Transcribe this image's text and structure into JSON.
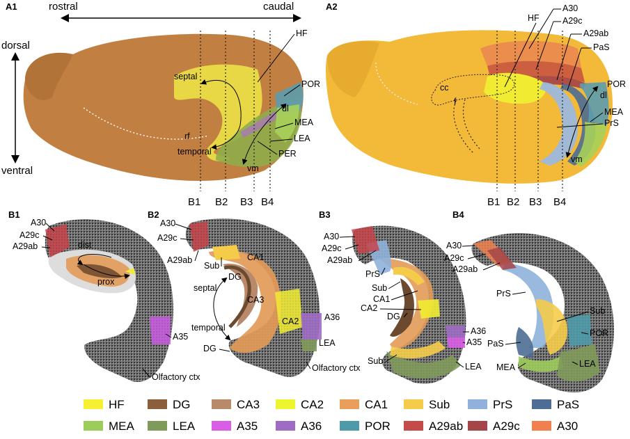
{
  "panels": {
    "a1": "A1",
    "a2": "A2",
    "b1": "B1",
    "b2": "B2",
    "b3": "B3",
    "b4": "B4"
  },
  "axes": {
    "rostral": "rostral",
    "caudal": "caudal",
    "dorsal": "dorsal",
    "ventral": "ventral"
  },
  "a1": {
    "hf": "HF",
    "septal": "septal",
    "por": "POR",
    "dl": "dl",
    "mea": "MEA",
    "rf": "rf",
    "temporal": "temporal",
    "lea": "LEA",
    "per": "PER",
    "vm": "vm",
    "cuts": [
      "B1",
      "B2",
      "B3",
      "B4"
    ]
  },
  "a2": {
    "hf": "HF",
    "a30": "A30",
    "a29c": "A29c",
    "a29ab": "A29ab",
    "pas": "PaS",
    "por": "POR",
    "dl": "dl",
    "cc": "cc",
    "f": "f",
    "mea": "MEA",
    "prs": "PrS",
    "vm": "vm",
    "cuts": [
      "B1",
      "B2",
      "B3",
      "B4"
    ]
  },
  "b1": {
    "a30": "A30",
    "a29c": "A29c",
    "a29ab": "A29ab",
    "dist": "dist",
    "prox": "prox",
    "a35": "A35",
    "olf": "Olfactory ctx"
  },
  "b2": {
    "a30": "A30",
    "a29c": "A29c",
    "a29ab": "A29ab",
    "sub": "Sub",
    "ca1": "CA1",
    "dg1": "DG",
    "septal": "septal",
    "ca3": "CA3",
    "ca2": "CA2",
    "temporal": "temporal",
    "a36": "A36",
    "lea": "LEA",
    "dg2": "DG",
    "olf": "Olfactory ctx"
  },
  "b3": {
    "a30": "A30",
    "a29c": "A29c",
    "a29ab": "A29ab",
    "prs": "PrS",
    "sub1": "Sub",
    "ca1": "CA1",
    "ca2": "CA2",
    "dg": "DG",
    "a36": "A36",
    "a35": "A35",
    "sub2": "Sub",
    "lea": "LEA"
  },
  "b4": {
    "a30": "A30",
    "a29c": "A29c",
    "a29ab": "A29ab",
    "prs": "PrS",
    "sub": "Sub",
    "por": "POR",
    "pas": "PaS",
    "mea": "MEA",
    "lea": "LEA"
  },
  "legend": [
    {
      "label": "HF",
      "color": "#f7f032"
    },
    {
      "label": "DG",
      "color": "#8b5e3c"
    },
    {
      "label": "CA3",
      "color": "#b8896a"
    },
    {
      "label": "CA2",
      "color": "#ecf52e"
    },
    {
      "label": "CA1",
      "color": "#e99e5a"
    },
    {
      "label": "Sub",
      "color": "#f5cc4a"
    },
    {
      "label": "PrS",
      "color": "#8fb1dc"
    },
    {
      "label": "PaS",
      "color": "#4e6d94"
    },
    {
      "label": "MEA",
      "color": "#9ccc5a"
    },
    {
      "label": "LEA",
      "color": "#7f9a5a"
    },
    {
      "label": "A35",
      "color": "#d95ee6"
    },
    {
      "label": "A36",
      "color": "#9f6cc4"
    },
    {
      "label": "POR",
      "color": "#4f9aa8"
    },
    {
      "label": "A29ab",
      "color": "#c44b48"
    },
    {
      "label": "A29c",
      "color": "#a5454a"
    },
    {
      "label": "A30",
      "color": "#f0814e"
    }
  ]
}
